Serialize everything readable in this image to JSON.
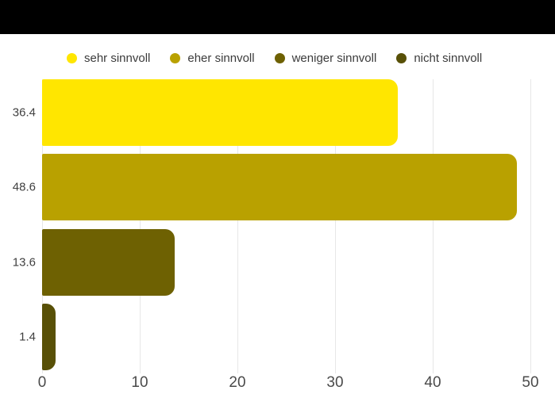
{
  "page": {
    "background": "#ffffff",
    "top_bar_color": "#000000"
  },
  "chart_data": {
    "type": "bar",
    "orientation": "horizontal",
    "categories": [
      "sehr sinnvoll",
      "eher sinnvoll",
      "weniger sinnvoll",
      "nicht sinnvoll"
    ],
    "values": [
      36.4,
      48.6,
      13.6,
      1.4
    ],
    "value_labels": [
      "36.4",
      "48.6",
      "13.6",
      "1.4"
    ],
    "colors": [
      "#FFE600",
      "#B9A100",
      "#6E6102",
      "#585007"
    ],
    "x_ticks": [
      0,
      10,
      20,
      30,
      40,
      50
    ],
    "x_tick_labels": [
      "0",
      "10",
      "20",
      "30",
      "40",
      "50"
    ],
    "xlim": [
      0,
      50
    ],
    "grid": true,
    "grid_color": "#e7e7e7",
    "legend_position": "top",
    "text_color": "#3b3b3b"
  }
}
